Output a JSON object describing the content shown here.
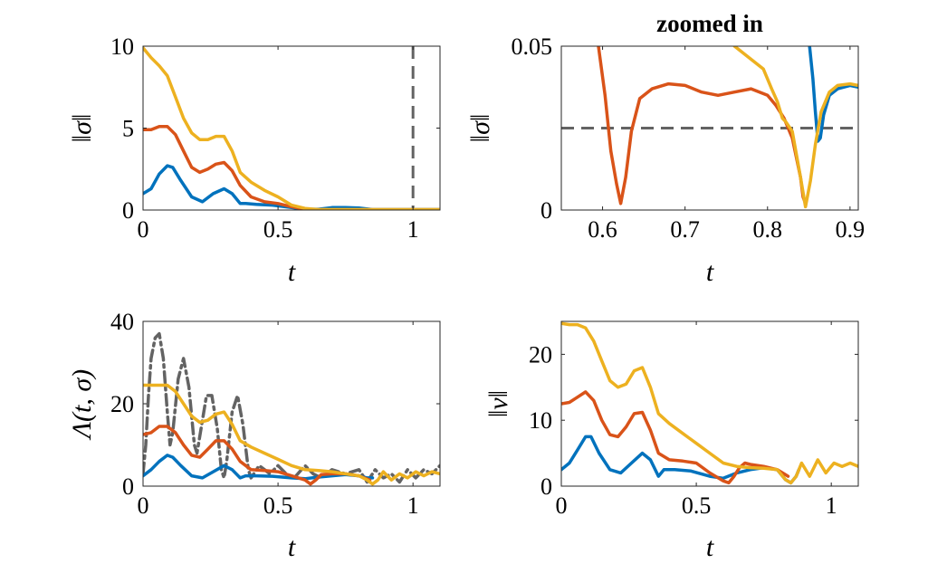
{
  "colors": {
    "blue": "#0072BD",
    "orange": "#D95319",
    "yellow": "#EDB120",
    "gray": "#636363"
  },
  "chart_data": [
    {
      "type": "line",
      "title": "",
      "xlabel": "t",
      "ylabel": "‖σ‖",
      "xlim": [
        0,
        1.1
      ],
      "ylim": [
        0,
        10
      ],
      "xticks": [
        0,
        0.5,
        1
      ],
      "xtick_labels": [
        "0",
        "0.5",
        "1"
      ],
      "yticks": [
        0,
        5,
        10
      ],
      "ytick_labels": [
        "0",
        "5",
        "10"
      ],
      "vlines": [
        {
          "x": 1,
          "style": "dashed",
          "color": "gray"
        }
      ],
      "series": [
        {
          "name": "blue",
          "color": "blue",
          "style": "solid",
          "x": [
            0,
            0.03,
            0.06,
            0.09,
            0.11,
            0.14,
            0.18,
            0.22,
            0.26,
            0.3,
            0.33,
            0.36,
            0.38,
            0.42,
            0.48,
            0.55,
            0.6,
            0.65,
            0.7,
            0.75,
            0.8,
            0.85,
            1.1
          ],
          "y": [
            1.0,
            1.3,
            2.2,
            2.7,
            2.6,
            1.8,
            0.8,
            0.5,
            1.0,
            1.3,
            1.0,
            0.4,
            0.4,
            0.35,
            0.3,
            0.15,
            0.05,
            0.05,
            0.15,
            0.15,
            0.12,
            0.03,
            0.03
          ]
        },
        {
          "name": "orange",
          "color": "orange",
          "style": "solid",
          "x": [
            0,
            0.03,
            0.06,
            0.09,
            0.12,
            0.15,
            0.18,
            0.21,
            0.24,
            0.27,
            0.3,
            0.33,
            0.36,
            0.4,
            0.45,
            0.5,
            0.55,
            0.6,
            0.65,
            0.7,
            1.1
          ],
          "y": [
            4.9,
            4.9,
            5.1,
            5.1,
            4.6,
            3.6,
            2.6,
            2.3,
            2.5,
            2.8,
            2.9,
            2.4,
            1.5,
            0.8,
            0.5,
            0.4,
            0.2,
            0.05,
            0.02,
            0.02,
            0.02
          ]
        },
        {
          "name": "yellow",
          "color": "yellow",
          "style": "solid",
          "x": [
            0,
            0.03,
            0.06,
            0.09,
            0.12,
            0.15,
            0.18,
            0.21,
            0.24,
            0.27,
            0.3,
            0.33,
            0.36,
            0.4,
            0.45,
            0.5,
            0.55,
            0.6,
            0.65,
            0.7,
            1.1
          ],
          "y": [
            9.9,
            9.3,
            8.8,
            8.2,
            6.9,
            5.6,
            4.7,
            4.3,
            4.3,
            4.5,
            4.5,
            3.6,
            2.3,
            1.7,
            1.2,
            0.8,
            0.3,
            0.1,
            0.03,
            0.03,
            0.03
          ]
        }
      ]
    },
    {
      "type": "line",
      "title": "zoomed in",
      "xlabel": "t",
      "ylabel": "‖σ‖",
      "xlim": [
        0.55,
        0.91
      ],
      "ylim": [
        0,
        0.05
      ],
      "xticks": [
        0.6,
        0.7,
        0.8,
        0.9
      ],
      "xtick_labels": [
        "0.6",
        "0.7",
        "0.8",
        "0.9"
      ],
      "yticks": [
        0,
        0.05
      ],
      "ytick_labels": [
        "0",
        "0.05"
      ],
      "hlines": [
        {
          "y": 0.025,
          "style": "dashed",
          "color": "gray"
        }
      ],
      "series": [
        {
          "name": "blue",
          "color": "blue",
          "style": "solid",
          "x": [
            0.851,
            0.855,
            0.858,
            0.861,
            0.864,
            0.868,
            0.875,
            0.885,
            0.9,
            0.91
          ],
          "y": [
            0.05,
            0.04,
            0.03,
            0.021,
            0.022,
            0.029,
            0.035,
            0.037,
            0.038,
            0.0375
          ]
        },
        {
          "name": "orange",
          "color": "orange",
          "style": "solid",
          "x": [
            0.595,
            0.603,
            0.61,
            0.617,
            0.622,
            0.628,
            0.635,
            0.645,
            0.66,
            0.68,
            0.7,
            0.72,
            0.74,
            0.76,
            0.78,
            0.8,
            0.81,
            0.82,
            0.83,
            0.84,
            0.843,
            0.846
          ],
          "y": [
            0.05,
            0.035,
            0.018,
            0.008,
            0.002,
            0.01,
            0.024,
            0.034,
            0.037,
            0.0385,
            0.038,
            0.036,
            0.035,
            0.036,
            0.037,
            0.035,
            0.032,
            0.028,
            0.022,
            0.01,
            0.004,
            0.002
          ]
        },
        {
          "name": "yellow",
          "color": "yellow",
          "style": "solid",
          "x": [
            0.76,
            0.78,
            0.795,
            0.805,
            0.812,
            0.818,
            0.822,
            0.83,
            0.84,
            0.846,
            0.852,
            0.858,
            0.865,
            0.875,
            0.885,
            0.9,
            0.91
          ],
          "y": [
            0.05,
            0.046,
            0.043,
            0.037,
            0.033,
            0.028,
            0.027,
            0.024,
            0.01,
            0.001,
            0.009,
            0.02,
            0.03,
            0.036,
            0.038,
            0.0385,
            0.038
          ]
        }
      ]
    },
    {
      "type": "line",
      "title": "",
      "xlabel": "t",
      "ylabel": "Λ(t, σ)",
      "xlim": [
        0,
        1.1
      ],
      "ylim": [
        0,
        40
      ],
      "xticks": [
        0,
        0.5,
        1
      ],
      "xtick_labels": [
        "0",
        "0.5",
        "1"
      ],
      "yticks": [
        0,
        20,
        40
      ],
      "ytick_labels": [
        "0",
        "20",
        "40"
      ],
      "series": [
        {
          "name": "bound",
          "color": "gray",
          "style": "dashdot",
          "x": [
            0,
            0.01,
            0.02,
            0.03,
            0.045,
            0.06,
            0.075,
            0.09,
            0.1,
            0.11,
            0.13,
            0.15,
            0.17,
            0.19,
            0.2,
            0.215,
            0.235,
            0.255,
            0.275,
            0.29,
            0.3,
            0.31,
            0.33,
            0.35,
            0.37,
            0.39,
            0.4,
            0.41,
            0.43,
            0.45,
            0.47,
            0.5,
            0.53,
            0.56,
            0.6,
            0.63,
            0.66,
            0.7,
            0.75,
            0.8,
            0.83,
            0.86,
            0.89,
            0.92,
            0.95,
            0.98,
            1.01,
            1.04,
            1.07,
            1.1
          ],
          "y": [
            3,
            10,
            22,
            31,
            36,
            37,
            31,
            18,
            10,
            13,
            26,
            31,
            24,
            10,
            8,
            14,
            22,
            22,
            14,
            4,
            2,
            6,
            18,
            22,
            15,
            4,
            2,
            3,
            5,
            4,
            3,
            5,
            3,
            2,
            5,
            3,
            2,
            4,
            3,
            4,
            1,
            4,
            2,
            3,
            1,
            4,
            2,
            4,
            3,
            5
          ]
        },
        {
          "name": "blue",
          "color": "blue",
          "style": "solid",
          "x": [
            0,
            0.03,
            0.06,
            0.09,
            0.11,
            0.14,
            0.18,
            0.22,
            0.26,
            0.3,
            0.33,
            0.36,
            0.38,
            0.42,
            0.48,
            0.55,
            0.6,
            0.65,
            0.7,
            0.75,
            0.8,
            0.83,
            0.85
          ],
          "y": [
            2.5,
            4,
            6,
            7.5,
            7,
            5,
            2.5,
            2,
            3.5,
            5,
            4,
            2,
            2.5,
            2.5,
            2.4,
            2,
            1.8,
            2.2,
            2.5,
            2.8,
            2.5,
            2,
            2
          ]
        },
        {
          "name": "orange",
          "color": "orange",
          "style": "solid",
          "x": [
            0,
            0.03,
            0.06,
            0.09,
            0.12,
            0.15,
            0.18,
            0.21,
            0.24,
            0.27,
            0.3,
            0.33,
            0.36,
            0.4,
            0.45,
            0.5,
            0.55,
            0.6,
            0.62,
            0.64,
            0.66,
            0.7,
            0.75,
            0.8,
            0.84
          ],
          "y": [
            12.5,
            13,
            14.5,
            14.5,
            13,
            10,
            7.5,
            7,
            9,
            11,
            11,
            9,
            6,
            4,
            3.8,
            3.5,
            2.5,
            1.5,
            0.5,
            1.5,
            2.8,
            3,
            3,
            2.5,
            1.5
          ]
        },
        {
          "name": "yellow",
          "color": "yellow",
          "style": "solid",
          "x": [
            0,
            0.03,
            0.06,
            0.09,
            0.12,
            0.15,
            0.18,
            0.21,
            0.24,
            0.27,
            0.3,
            0.33,
            0.36,
            0.4,
            0.45,
            0.5,
            0.55,
            0.6,
            0.65,
            0.7,
            0.75,
            0.8,
            0.83,
            0.85,
            0.87,
            0.89,
            0.92,
            0.95,
            0.98,
            1.01,
            1.04,
            1.07,
            1.1
          ],
          "y": [
            24.5,
            24.5,
            24.5,
            24.5,
            23,
            20,
            17,
            15.5,
            16,
            17.5,
            18,
            15,
            11,
            9.5,
            8,
            6.5,
            5,
            4,
            3.8,
            3.5,
            3,
            2.5,
            1.5,
            0.5,
            1.5,
            3.5,
            1.5,
            3,
            2,
            3.5,
            2.5,
            3.5,
            3
          ]
        }
      ]
    },
    {
      "type": "line",
      "title": "",
      "xlabel": "t",
      "ylabel": "‖ν‖",
      "xlim": [
        0,
        1.1
      ],
      "ylim": [
        0,
        25
      ],
      "xticks": [
        0,
        0.5,
        1
      ],
      "xtick_labels": [
        "0",
        "0.5",
        "1"
      ],
      "yticks": [
        0,
        10,
        20
      ],
      "ytick_labels": [
        "0",
        "10",
        "20"
      ],
      "series": [
        {
          "name": "blue",
          "color": "blue",
          "style": "solid",
          "x": [
            0,
            0.03,
            0.06,
            0.09,
            0.11,
            0.14,
            0.18,
            0.22,
            0.26,
            0.3,
            0.33,
            0.36,
            0.38,
            0.42,
            0.48,
            0.55,
            0.6,
            0.65,
            0.7,
            0.75,
            0.8,
            0.83,
            0.85,
            0.87,
            0.88
          ],
          "y": [
            2.5,
            3.5,
            5.5,
            7.5,
            7.5,
            5,
            2.5,
            2,
            3.5,
            5,
            4,
            1.5,
            2.5,
            2.5,
            2.3,
            1.5,
            1.2,
            2,
            2.5,
            2.8,
            2.5,
            1,
            0.5,
            1.5,
            2.5
          ]
        },
        {
          "name": "orange",
          "color": "orange",
          "style": "solid",
          "x": [
            0,
            0.03,
            0.06,
            0.09,
            0.12,
            0.15,
            0.18,
            0.21,
            0.24,
            0.27,
            0.3,
            0.33,
            0.36,
            0.4,
            0.45,
            0.5,
            0.55,
            0.6,
            0.62,
            0.64,
            0.66,
            0.68,
            0.7,
            0.75,
            0.8,
            0.84
          ],
          "y": [
            12.5,
            12.7,
            13.5,
            14.3,
            13,
            10,
            7.8,
            7.5,
            9,
            11,
            11.2,
            8.5,
            5,
            4,
            3.8,
            3.5,
            2,
            0.8,
            0.5,
            1.5,
            2.8,
            3.5,
            3.3,
            3,
            2.5,
            1.5
          ]
        },
        {
          "name": "yellow",
          "color": "yellow",
          "style": "solid",
          "x": [
            0,
            0.03,
            0.06,
            0.09,
            0.12,
            0.15,
            0.18,
            0.21,
            0.24,
            0.27,
            0.3,
            0.33,
            0.36,
            0.4,
            0.45,
            0.5,
            0.55,
            0.6,
            0.65,
            0.7,
            0.75,
            0.8,
            0.83,
            0.85,
            0.87,
            0.89,
            0.92,
            0.95,
            0.98,
            1.01,
            1.04,
            1.07,
            1.1
          ],
          "y": [
            24.7,
            24.5,
            24.5,
            24,
            22,
            19,
            16,
            15,
            15.5,
            17.5,
            18,
            15,
            11,
            9.5,
            8,
            6.5,
            5,
            3.5,
            3,
            2.8,
            2.7,
            2.5,
            1,
            0.5,
            1.5,
            3.5,
            1.5,
            4,
            2,
            3.5,
            3,
            3.5,
            3
          ]
        }
      ]
    }
  ]
}
